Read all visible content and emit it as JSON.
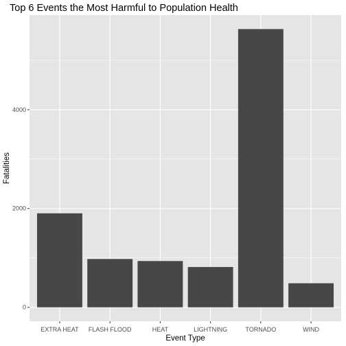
{
  "chart_data": {
    "type": "bar",
    "title": "Top 6 Events the Most Harmful to Population Health",
    "xlabel": "Event Type",
    "ylabel": "Fatalities",
    "categories": [
      "EXTRA HEAT",
      "FLASH FLOOD",
      "HEAT",
      "LIGHTNING",
      "TORNADO",
      "WIND"
    ],
    "values": [
      1903,
      978,
      937,
      816,
      5633,
      487
    ],
    "ylim": [
      -283,
      5916
    ],
    "yticks": [
      0,
      2000,
      4000
    ],
    "ytick_labels": [
      "0",
      "2000",
      "4000"
    ],
    "grid": true,
    "colors": {
      "bar": "#474747",
      "panel_background": "#e5e5e5",
      "grid": "#ffffff"
    }
  }
}
